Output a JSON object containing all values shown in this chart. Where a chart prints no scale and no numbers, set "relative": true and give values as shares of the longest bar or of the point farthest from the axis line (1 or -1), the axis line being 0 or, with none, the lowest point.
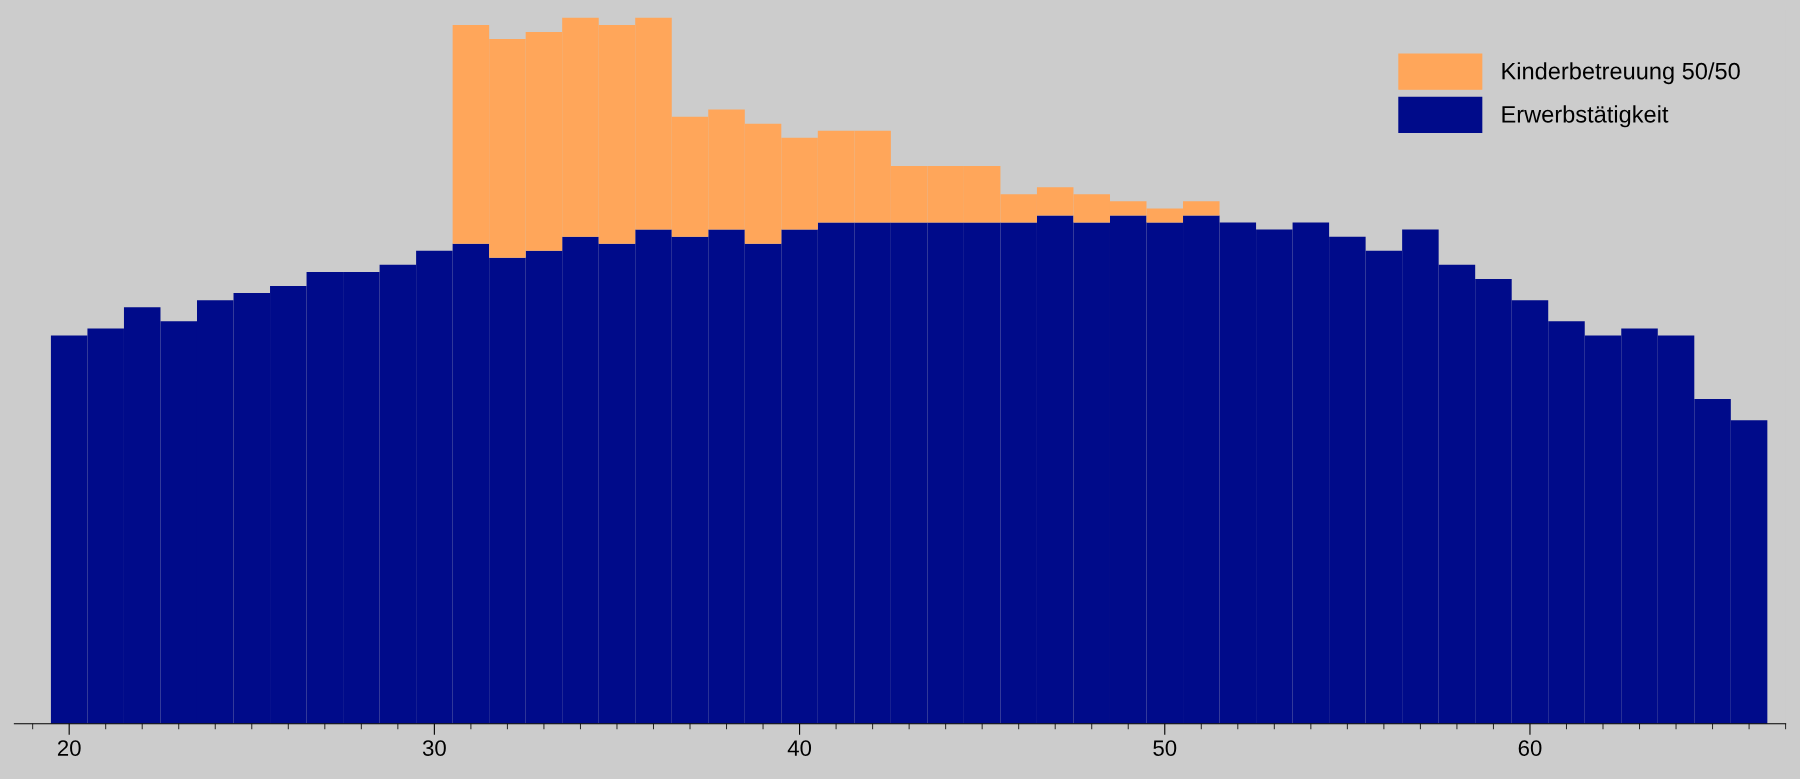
{
  "chart_data": {
    "type": "bar",
    "stacked": true,
    "relative": true,
    "legend": "top right",
    "grid": false,
    "x": [
      20,
      21,
      22,
      23,
      24,
      25,
      26,
      27,
      28,
      29,
      30,
      31,
      32,
      33,
      34,
      35,
      36,
      37,
      38,
      39,
      40,
      41,
      42,
      43,
      44,
      45,
      46,
      47,
      48,
      49,
      50,
      51,
      52,
      53,
      54,
      55,
      56,
      57,
      58,
      59,
      60,
      61,
      62,
      63,
      64,
      65,
      66
    ],
    "xlim": [
      18.5,
      67
    ],
    "xticks": [
      20,
      30,
      40,
      50,
      60
    ],
    "series": [
      {
        "name": "Erwerbstätigkeit",
        "color": "#000b8a",
        "values": [
          0.55,
          0.56,
          0.59,
          0.57,
          0.6,
          0.61,
          0.62,
          0.64,
          0.64,
          0.65,
          0.67,
          0.68,
          0.66,
          0.67,
          0.69,
          0.68,
          0.7,
          0.69,
          0.7,
          0.68,
          0.7,
          0.71,
          0.71,
          0.71,
          0.71,
          0.71,
          0.71,
          0.72,
          0.71,
          0.72,
          0.71,
          0.72,
          0.71,
          0.7,
          0.71,
          0.69,
          0.67,
          0.7,
          0.65,
          0.63,
          0.6,
          0.57,
          0.55,
          0.56,
          0.55,
          0.46,
          0.43
        ]
      },
      {
        "name": "Kinderbetreuung 50/50",
        "color": "#ffa65a",
        "values": [
          0,
          0,
          0,
          0,
          0,
          0,
          0,
          0,
          0,
          0,
          0,
          0.31,
          0.31,
          0.31,
          0.31,
          0.31,
          0.3,
          0.17,
          0.17,
          0.17,
          0.13,
          0.13,
          0.13,
          0.08,
          0.08,
          0.08,
          0.04,
          0.04,
          0.04,
          0.02,
          0.02,
          0.02,
          0,
          0,
          0,
          0,
          0,
          0,
          0,
          0,
          0,
          0,
          0,
          0,
          0,
          0,
          0
        ]
      }
    ]
  }
}
